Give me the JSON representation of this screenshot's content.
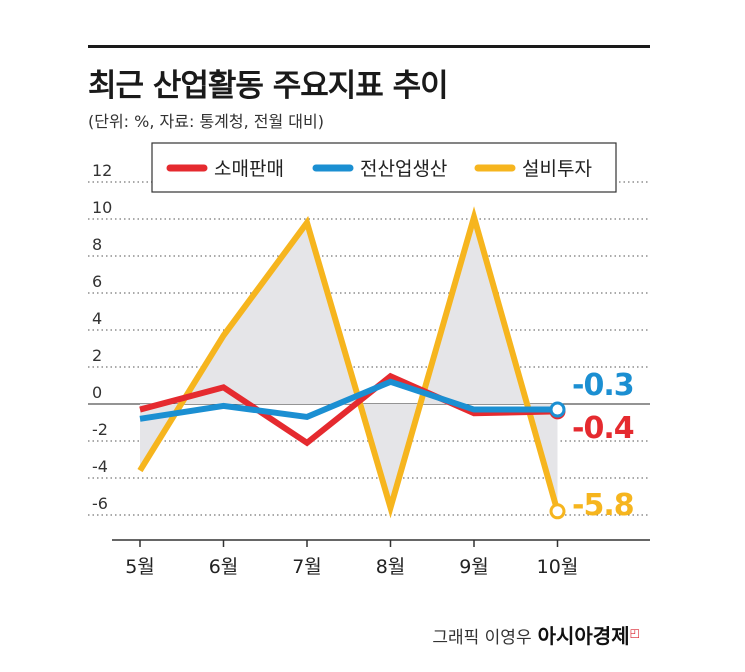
{
  "header": {
    "title": "최근 산업활동 주요지표 추이",
    "subtitle": "(단위: %, 자료: 통계청, 전월 대비)"
  },
  "credit": {
    "author": "그래픽 이영우",
    "brand": "아시아경제"
  },
  "colors": {
    "retail": "#e52a2f",
    "industrial": "#1b8fd2",
    "investment": "#f6b51e",
    "fill": "#e5e5e8"
  },
  "chart_data": {
    "type": "line",
    "title": "최근 산업활동 주요지표 추이",
    "categories": [
      "5월",
      "6월",
      "7월",
      "8월",
      "9월",
      "10월"
    ],
    "yticks": [
      "12",
      "10",
      "8",
      "6",
      "4",
      "2",
      "0",
      "-2",
      "-4",
      "-6"
    ],
    "ylim": [
      -6.5,
      12.5
    ],
    "grid": true,
    "legend_position": "top",
    "series": [
      {
        "name": "소매판매",
        "key": "retail",
        "values": [
          -0.3,
          0.9,
          -2.1,
          1.5,
          -0.5,
          -0.4
        ],
        "end_label": "-0.4"
      },
      {
        "name": "전산업생산",
        "key": "industrial",
        "values": [
          -0.8,
          -0.1,
          -0.7,
          1.2,
          -0.3,
          -0.3
        ],
        "end_label": "-0.3"
      },
      {
        "name": "설비투자",
        "key": "investment",
        "values": [
          -3.6,
          3.7,
          9.8,
          -5.6,
          10.1,
          -5.8
        ],
        "end_label": "-5.8"
      }
    ]
  }
}
